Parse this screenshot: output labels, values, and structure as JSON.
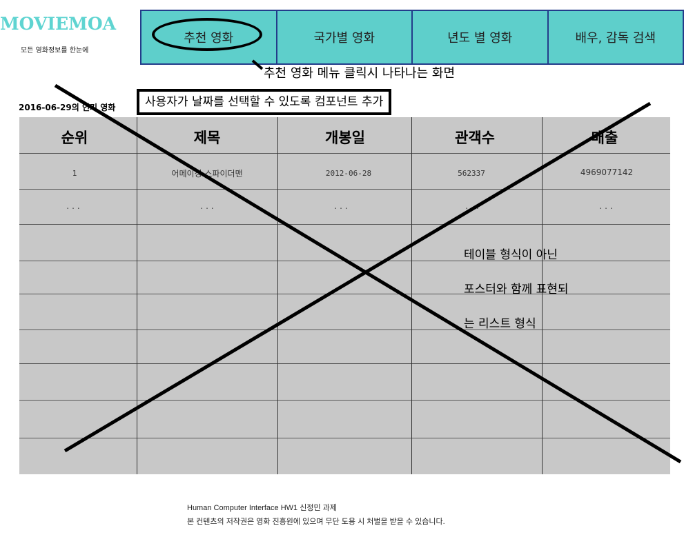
{
  "brand": {
    "logo": "MOVIEMOA",
    "tagline": "모든 영화정보를 한눈에",
    "accent_color": "#5fd4d1"
  },
  "nav": {
    "items": [
      {
        "label": "추천 영화"
      },
      {
        "label": "국가별 영화"
      },
      {
        "label": "년도 별 영화"
      },
      {
        "label": "배우, 감독 검색"
      }
    ],
    "background": "#5ecfcb",
    "border": "#233c8a"
  },
  "annotations": {
    "menu_note": "추천 영화 메뉴 클릭시 나타나는 화면",
    "date_picker_note": "사용자가 날짜를 선택할 수 있도록 컴포넌트 추가",
    "list_note": [
      "테이블 형식이 아닌",
      "포스터와 함께 표현되",
      "는 리스트 형식"
    ]
  },
  "section": {
    "title": "2016-06-29의 인기 영화"
  },
  "table": {
    "headers": [
      "순위",
      "제목",
      "개봉일",
      "관객수",
      "매출"
    ],
    "rows": [
      [
        "1",
        "어메이징 스파이더맨",
        "2012-06-28",
        "562337",
        "4969077142"
      ],
      [
        "...",
        "...",
        "...",
        "...",
        "..."
      ]
    ]
  },
  "footer": {
    "line1": "Human Computer Interface HW1 신정민 과제",
    "line2": "본 컨텐츠의 저작권은 영화 진흥원에 있으며 무단 도용 시 처벌을 받을 수 있습니다."
  }
}
